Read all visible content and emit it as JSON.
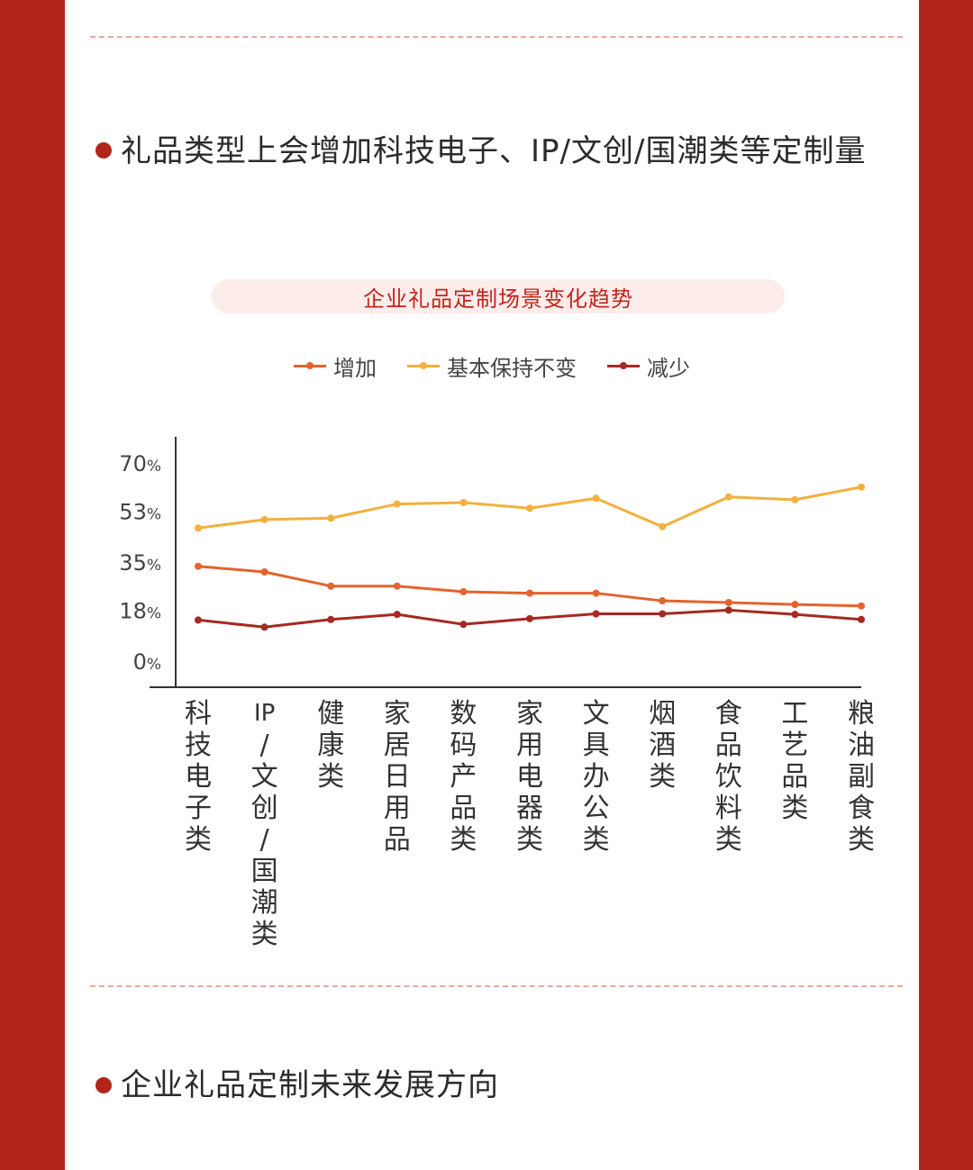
{
  "section1": {
    "heading": "礼品类型上会增加科技电子、IP/文创/国潮类等定制量"
  },
  "section2": {
    "heading": "企业礼品定制未来发展方向"
  },
  "chart_data": {
    "type": "line",
    "title": "企业礼品定制场景变化趋势",
    "categories": [
      "科技电子类",
      "IP/文创/国潮类",
      "健康类",
      "家居日用品",
      "数码产品类",
      "家用电器类",
      "文具办公类",
      "烟酒类",
      "食品饮料类",
      "工艺品类",
      "粮油副食类"
    ],
    "series": [
      {
        "name": "增加",
        "color": "#e4632e",
        "values": [
          33.5,
          31.5,
          26.5,
          26.5,
          24.5,
          24,
          24,
          21.3,
          20.7,
          20,
          19.5
        ]
      },
      {
        "name": "基本保持不变",
        "color": "#f2b03d",
        "values": [
          47,
          50,
          50.5,
          55.5,
          56,
          54,
          57.5,
          47.5,
          58,
          57,
          61.5
        ]
      },
      {
        "name": "减少",
        "color": "#a52a22",
        "values": [
          14.5,
          12,
          14.7,
          16.5,
          13,
          15,
          16.7,
          16.7,
          18,
          16.5,
          14.7
        ]
      }
    ],
    "y_ticks": [
      "0",
      "18",
      "35",
      "53",
      "70"
    ],
    "y_unit": "%",
    "ylim": [
      0,
      70
    ],
    "legend": "top-center",
    "grid": false
  }
}
